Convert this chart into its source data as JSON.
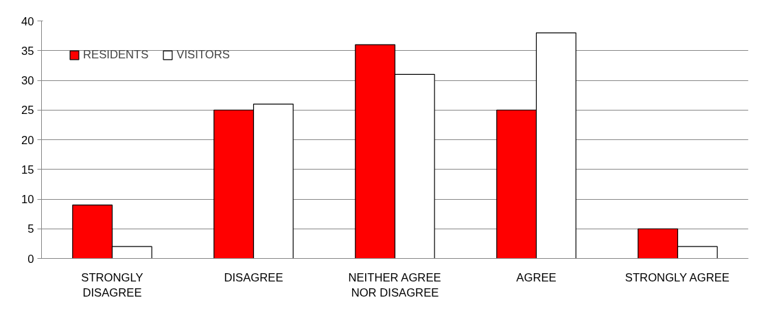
{
  "chart_data": {
    "type": "bar",
    "categories": [
      "STRONGLY\nDISAGREE",
      "DISAGREE",
      "NEITHER AGREE\nNOR DISAGREE",
      "AGREE",
      "STRONGLY AGREE"
    ],
    "series": [
      {
        "name": "RESIDENTS",
        "color": "#ff0000",
        "values": [
          9,
          25,
          36,
          25,
          5
        ]
      },
      {
        "name": "VISITORS",
        "color": "#ffffff",
        "values": [
          2,
          26,
          31,
          38,
          2
        ]
      }
    ],
    "ylim": [
      0,
      40
    ],
    "yticks": [
      0,
      5,
      10,
      15,
      20,
      25,
      30,
      35,
      40
    ],
    "grid": "y",
    "legend": "top left"
  }
}
